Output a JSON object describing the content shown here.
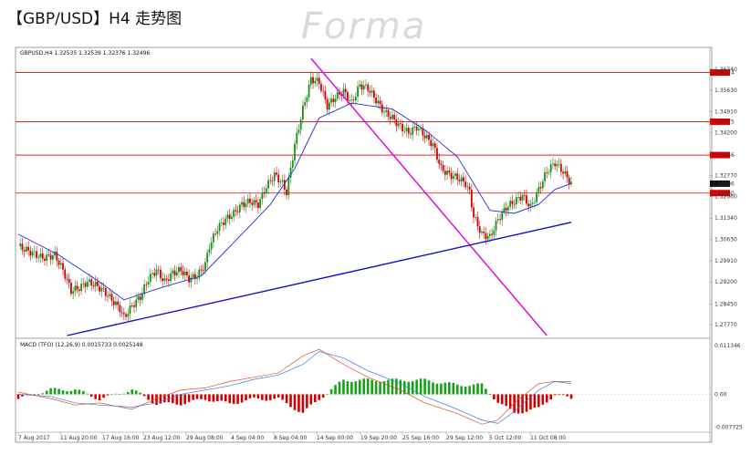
{
  "title": "【GBP/USD】H4 走势图",
  "watermark": "Forma",
  "chart_data": {
    "type": "candlestick",
    "symbol_header": "GBPUSD,H4  1.32535 1.32539 1.32376 1.32496",
    "macd_header": "MACD (TFO) (12,26,9) 0.0015733 0.0025148",
    "price_axis": {
      "ylim": [
        1.274,
        1.367
      ],
      "ticks": [
        "1.36340",
        "1.35630",
        "1.34910",
        "1.34200",
        "1.32770",
        "1.32060",
        "1.31340",
        "1.30630",
        "1.29910",
        "1.29200",
        "1.28450",
        "1.27770"
      ]
    },
    "current_price": "1.32496",
    "horizontal_levels": [
      {
        "label": "1.36224",
        "value": 1.36224
      },
      {
        "label": "1.34575",
        "value": 1.34575
      },
      {
        "label": "1.33456",
        "value": 1.33456
      },
      {
        "label": "1.32180",
        "value": 1.3218
      }
    ],
    "dates": [
      "7 Aug 2017",
      "11 Aug 20:00",
      "17 Aug 16:00",
      "23 Aug 12:00",
      "29 Aug 08:00",
      "4 Sep 04:00",
      "8 Sep 04:00",
      "14 Sep 00:00",
      "19 Sep 20:00",
      "25 Sep 16:00",
      "29 Sep 12:00",
      "5 Oct 12:00",
      "11 Oct 08:00"
    ],
    "price_path": [
      [
        0,
        1.304
      ],
      [
        3,
        1.302
      ],
      [
        6,
        1.3
      ],
      [
        9,
        1.301
      ],
      [
        11,
        1.296
      ],
      [
        13,
        1.289
      ],
      [
        15,
        1.29
      ],
      [
        17,
        1.292
      ],
      [
        19,
        1.291
      ],
      [
        21,
        1.289
      ],
      [
        23,
        1.286
      ],
      [
        25,
        1.283
      ],
      [
        26,
        1.28
      ],
      [
        28,
        1.284
      ],
      [
        30,
        1.287
      ],
      [
        32,
        1.293
      ],
      [
        34,
        1.296
      ],
      [
        36,
        1.292
      ],
      [
        38,
        1.295
      ],
      [
        40,
        1.296
      ],
      [
        42,
        1.293
      ],
      [
        44,
        1.294
      ],
      [
        46,
        1.298
      ],
      [
        47,
        1.304
      ],
      [
        49,
        1.31
      ],
      [
        51,
        1.313
      ],
      [
        53,
        1.315
      ],
      [
        55,
        1.318
      ],
      [
        57,
        1.319
      ],
      [
        59,
        1.318
      ],
      [
        61,
        1.324
      ],
      [
        63,
        1.328
      ],
      [
        65,
        1.325
      ],
      [
        66,
        1.322
      ],
      [
        68,
        1.338
      ],
      [
        70,
        1.35
      ],
      [
        72,
        1.36
      ],
      [
        74,
        1.359
      ],
      [
        76,
        1.351
      ],
      [
        78,
        1.354
      ],
      [
        80,
        1.356
      ],
      [
        82,
        1.352
      ],
      [
        84,
        1.358
      ],
      [
        86,
        1.357
      ],
      [
        88,
        1.353
      ],
      [
        90,
        1.349
      ],
      [
        92,
        1.347
      ],
      [
        94,
        1.344
      ],
      [
        96,
        1.342
      ],
      [
        98,
        1.344
      ],
      [
        100,
        1.341
      ],
      [
        102,
        1.338
      ],
      [
        104,
        1.33
      ],
      [
        106,
        1.328
      ],
      [
        108,
        1.327
      ],
      [
        110,
        1.325
      ],
      [
        111,
        1.322
      ],
      [
        112,
        1.314
      ],
      [
        114,
        1.308
      ],
      [
        116,
        1.307
      ],
      [
        118,
        1.313
      ],
      [
        120,
        1.317
      ],
      [
        122,
        1.319
      ],
      [
        124,
        1.321
      ],
      [
        126,
        1.317
      ],
      [
        128,
        1.323
      ],
      [
        130,
        1.329
      ],
      [
        132,
        1.332
      ],
      [
        134,
        1.329
      ],
      [
        136,
        1.325
      ]
    ],
    "moving_average": [
      [
        0,
        1.308
      ],
      [
        10,
        1.301
      ],
      [
        20,
        1.292
      ],
      [
        26,
        1.286
      ],
      [
        35,
        1.29
      ],
      [
        45,
        1.294
      ],
      [
        55,
        1.308
      ],
      [
        62,
        1.318
      ],
      [
        68,
        1.33
      ],
      [
        74,
        1.347
      ],
      [
        82,
        1.352
      ],
      [
        92,
        1.35
      ],
      [
        100,
        1.343
      ],
      [
        108,
        1.334
      ],
      [
        116,
        1.316
      ],
      [
        122,
        1.315
      ],
      [
        128,
        1.318
      ],
      [
        132,
        1.323
      ],
      [
        136,
        1.325
      ]
    ],
    "trendlines": [
      {
        "color": "#e000e0",
        "from": [
          72,
          1.367
        ],
        "to": [
          130,
          1.274
        ]
      },
      {
        "color": "#1010c8",
        "from": [
          12,
          1.274
        ],
        "to": [
          136,
          1.312
        ]
      }
    ],
    "macd_axis": {
      "ylim": [
        -0.008,
        0.0116
      ],
      "ticks": [
        "0.011346",
        "0.00",
        "-0.007725"
      ]
    },
    "macd_signal": [
      [
        0,
        0.0005
      ],
      [
        8,
        -0.001
      ],
      [
        14,
        -0.0025
      ],
      [
        20,
        -0.002
      ],
      [
        28,
        -0.0035
      ],
      [
        34,
        -0.001
      ],
      [
        40,
        0.001
      ],
      [
        46,
        0.0015
      ],
      [
        52,
        0.003
      ],
      [
        58,
        0.004
      ],
      [
        64,
        0.005
      ],
      [
        70,
        0.009
      ],
      [
        74,
        0.0105
      ],
      [
        80,
        0.007
      ],
      [
        86,
        0.004
      ],
      [
        94,
        0.001
      ],
      [
        100,
        -0.002
      ],
      [
        108,
        -0.0045
      ],
      [
        114,
        -0.007
      ],
      [
        118,
        -0.006
      ],
      [
        122,
        -0.002
      ],
      [
        128,
        0.0025
      ],
      [
        132,
        0.003
      ],
      [
        136,
        0.003
      ]
    ],
    "macd_main": [
      [
        0,
        0.0
      ],
      [
        8,
        -0.0005
      ],
      [
        14,
        -0.002
      ],
      [
        20,
        -0.0025
      ],
      [
        28,
        -0.003
      ],
      [
        34,
        -0.002
      ],
      [
        40,
        0.0
      ],
      [
        46,
        0.001
      ],
      [
        52,
        0.002
      ],
      [
        58,
        0.0035
      ],
      [
        64,
        0.0045
      ],
      [
        70,
        0.007
      ],
      [
        74,
        0.01
      ],
      [
        80,
        0.0085
      ],
      [
        86,
        0.0055
      ],
      [
        94,
        0.0025
      ],
      [
        100,
        -0.0005
      ],
      [
        108,
        -0.0035
      ],
      [
        114,
        -0.006
      ],
      [
        118,
        -0.0068
      ],
      [
        122,
        -0.004
      ],
      [
        128,
        0.001
      ],
      [
        132,
        0.003
      ],
      [
        136,
        0.0025
      ]
    ]
  }
}
